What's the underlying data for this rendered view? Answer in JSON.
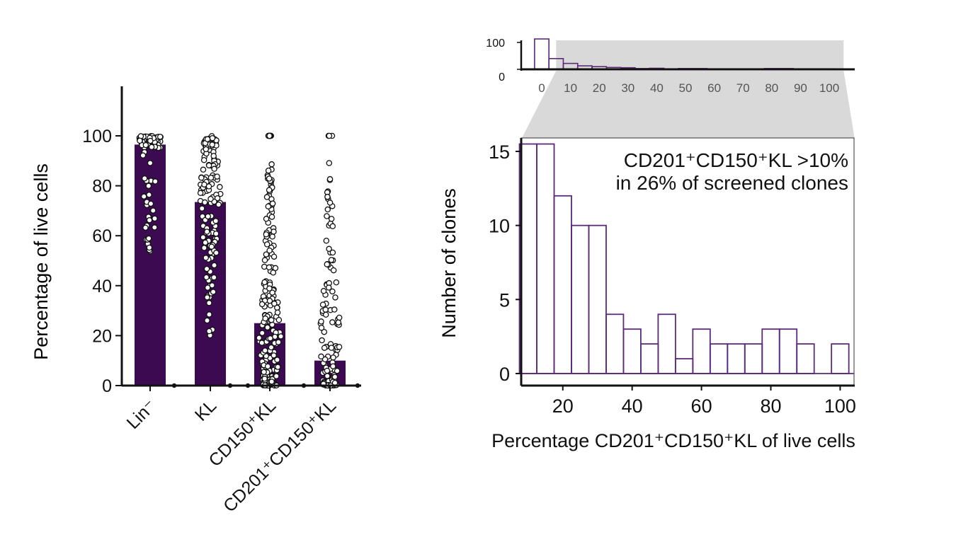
{
  "colors": {
    "bar": "#3b0a51",
    "hist": "#5b2a78",
    "axis": "#111111",
    "zoom": "#d9d9d9"
  },
  "chart_data": [
    {
      "id": "bar-scatter",
      "type": "bar",
      "ylabel": "Percentage of live cells",
      "ylim": [
        0,
        120
      ],
      "yticks": [
        "0",
        "20",
        "40",
        "60",
        "80",
        "100"
      ],
      "categories": [
        "Lin⁻",
        "KL",
        "CD150⁺KL",
        "CD201⁺CD150⁺KL"
      ],
      "values": [
        96.5,
        73.5,
        25,
        10
      ],
      "points_note": "individual clone values overlaid as open circles per category"
    },
    {
      "id": "overview-histogram",
      "type": "bar",
      "xticks": [
        "0",
        "10",
        "20",
        "30",
        "40",
        "50",
        "60",
        "70",
        "80",
        "90",
        "100"
      ],
      "yticks": [
        "0",
        "100"
      ],
      "bin_width": 5,
      "values": [
        113,
        40,
        22,
        13,
        10,
        7,
        6,
        3,
        4,
        2,
        3,
        3,
        2,
        2,
        2,
        2,
        3,
        3,
        2,
        2,
        2
      ],
      "zoom_window": [
        5,
        105
      ]
    },
    {
      "id": "zoom-histogram",
      "type": "bar",
      "xlabel": "Percentage CD201⁺CD150⁺KL of live cells",
      "ylabel": "Number of clones",
      "xlim": [
        8,
        104
      ],
      "ylim": [
        0,
        15.5
      ],
      "xticks": [
        "20",
        "40",
        "60",
        "80",
        "100"
      ],
      "yticks": [
        "0",
        "5",
        "10",
        "15"
      ],
      "bin_width": 5,
      "bin_starts": [
        10,
        15,
        20,
        25,
        30,
        35,
        40,
        45,
        50,
        55,
        60,
        65,
        70,
        75,
        80,
        85,
        90,
        95,
        100
      ],
      "values": [
        16,
        16,
        12,
        10,
        10,
        4,
        3,
        2,
        4,
        1,
        3,
        2,
        2,
        2,
        3,
        3,
        2,
        0,
        2
      ],
      "annotation_line1": "CD201⁺CD150⁺KL >10%",
      "annotation_line2": "in 26% of screened clones"
    }
  ]
}
